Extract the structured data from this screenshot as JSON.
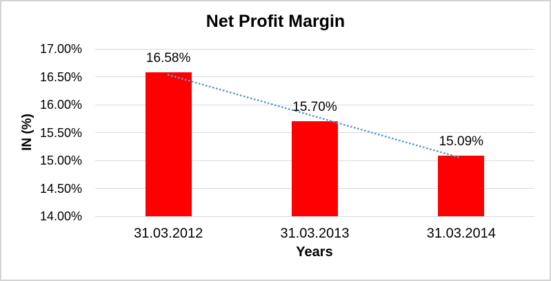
{
  "chart_data": {
    "type": "bar",
    "title": "Net Profit Margin",
    "xlabel": "Years",
    "ylabel": "IN (%)",
    "categories": [
      "31.03.2012",
      "31.03.2013",
      "31.03.2014"
    ],
    "values": [
      16.58,
      15.7,
      15.09
    ],
    "data_labels": [
      "16.58%",
      "15.70%",
      "15.09%"
    ],
    "ylim": [
      14.0,
      17.0
    ],
    "ytick_step": 0.5,
    "ytick_values": [
      17.0,
      16.5,
      16.0,
      15.5,
      15.0,
      14.5,
      14.0
    ],
    "ytick_labels": [
      "17.00%",
      "16.50%",
      "16.00%",
      "15.50%",
      "15.00%",
      "14.50%",
      "14.00%"
    ],
    "grid": true,
    "legend": "none",
    "bar_color": "#ff0000",
    "trendline": {
      "type": "linear",
      "style": "dotted",
      "color": "#5b9bd5"
    },
    "gridline_color": "#d9d9d9",
    "border_color": "#d3d3d3",
    "text_color": "#000000",
    "background_color": "#ffffff"
  }
}
